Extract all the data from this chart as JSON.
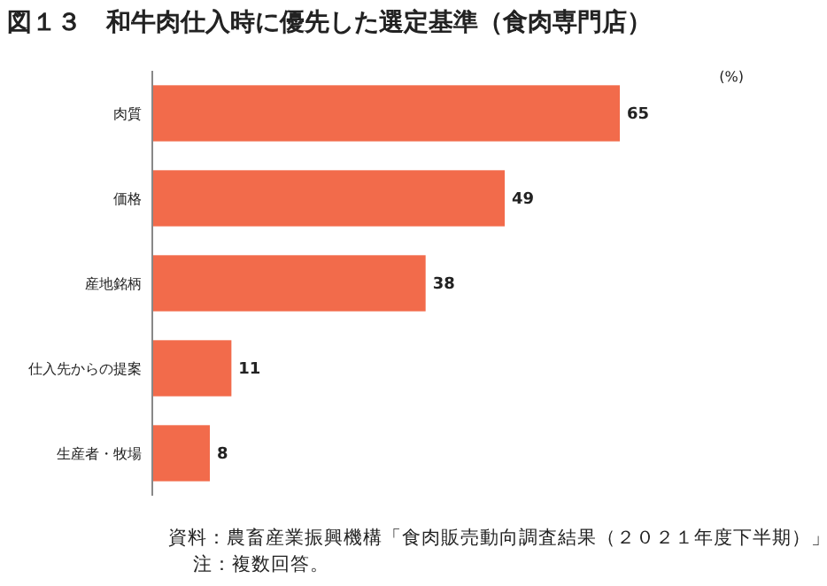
{
  "chart_data": {
    "type": "bar",
    "orientation": "horizontal",
    "title": "図１３　和牛肉仕入時に優先した選定基準（食肉専門店）",
    "categories": [
      "肉質",
      "価格",
      "産地銘柄",
      "仕入先からの提案",
      "生産者・牧場"
    ],
    "values": [
      65,
      49,
      38,
      11,
      8
    ],
    "color": "#f26b4b",
    "data_labels": true,
    "annotations": [
      "(%)",
      "資料：農畜産業振興機構「食肉販売動向調査結果（２０２１年度下半期）」",
      "注：複数回答。"
    ]
  }
}
